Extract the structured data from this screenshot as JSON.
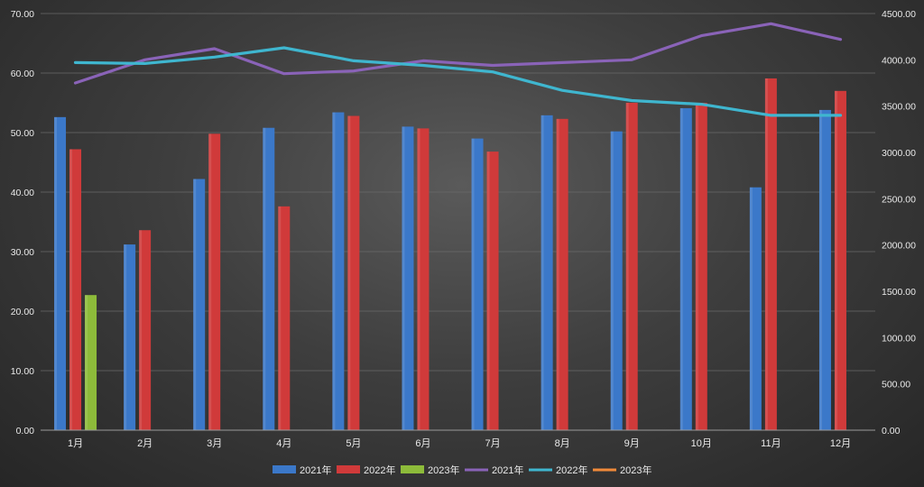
{
  "chart_data": {
    "type": "bar+line",
    "title": "",
    "categories": [
      "1月",
      "2月",
      "3月",
      "4月",
      "5月",
      "6月",
      "7月",
      "8月",
      "9月",
      "10月",
      "11月",
      "12月"
    ],
    "y_left": {
      "min": 0,
      "max": 70,
      "step": 10,
      "tick_labels": [
        "0.00",
        "10.00",
        "20.00",
        "30.00",
        "40.00",
        "50.00",
        "60.00",
        "70.00"
      ]
    },
    "y_right": {
      "min": 0,
      "max": 4500,
      "step": 500,
      "tick_labels": [
        "0.00",
        "500.00",
        "1000.00",
        "1500.00",
        "2000.00",
        "2500.00",
        "3000.00",
        "3500.00",
        "4000.00",
        "4500.00"
      ]
    },
    "bar_series": [
      {
        "name": "2021年",
        "color": "#3b78c9",
        "values": [
          52.6,
          31.2,
          42.2,
          50.8,
          53.4,
          51.0,
          49.0,
          52.9,
          50.2,
          54.1,
          40.8,
          53.8
        ]
      },
      {
        "name": "2022年",
        "color": "#d03a3a",
        "values": [
          47.2,
          33.6,
          49.8,
          37.6,
          52.8,
          50.7,
          46.8,
          52.3,
          55.0,
          55.0,
          59.1,
          57.0
        ]
      },
      {
        "name": "2023年",
        "color": "#8dbb3a",
        "values": [
          22.7,
          null,
          null,
          null,
          null,
          null,
          null,
          null,
          null,
          null,
          null,
          null
        ]
      }
    ],
    "line_series": [
      {
        "name": "2021年",
        "color": "#8a63b8",
        "values": [
          3750,
          4000,
          4120,
          3850,
          3880,
          3990,
          3940,
          3970,
          4000,
          4260,
          4390,
          4220
        ]
      },
      {
        "name": "2022年",
        "color": "#3fb6cf",
        "values": [
          3970,
          3960,
          4030,
          4130,
          3990,
          3940,
          3870,
          3670,
          3560,
          3520,
          3400,
          3400
        ]
      },
      {
        "name": "2023年",
        "color": "#f08a3a",
        "values": [
          null,
          null,
          null,
          null,
          null,
          null,
          null,
          null,
          null,
          null,
          null,
          null
        ]
      }
    ],
    "legend_position": "bottom"
  }
}
